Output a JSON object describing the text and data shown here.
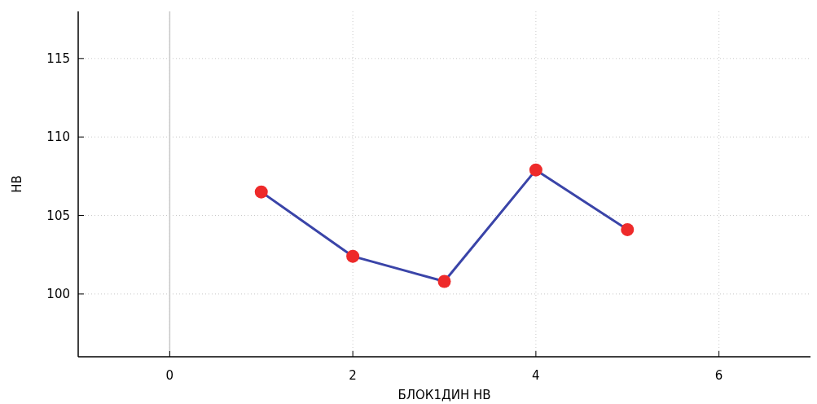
{
  "chart_data": {
    "type": "line",
    "xlabel": "БЛОК1ДИН НВ",
    "ylabel": "НВ",
    "x": [
      1,
      2,
      3,
      4,
      5
    ],
    "series": [
      {
        "color": "#3a44a8",
        "colors": [
          "#ee2a2a",
          "#ee2a2a",
          "#ee2a2a",
          "#ee2a2a",
          "#ee2a2a"
        ],
        "values": [
          106.5,
          102.4,
          100.8,
          107.9,
          104.1
        ]
      }
    ],
    "marker": "circle",
    "line_style": "solid",
    "grid": true,
    "xlim": [
      -1,
      7
    ],
    "xticks": [
      0,
      2,
      4,
      6
    ],
    "ylim": [
      96,
      118
    ],
    "yticks": [
      100,
      105,
      110,
      115
    ],
    "ref_lines": [
      {
        "axis": "x",
        "value": 0,
        "color": "#c8c8c8"
      }
    ]
  }
}
